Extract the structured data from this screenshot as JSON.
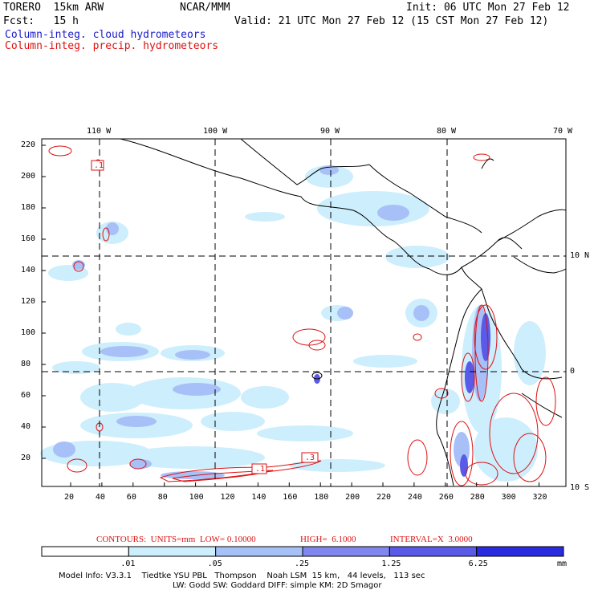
{
  "header": {
    "model": "TORERO  15km ARW",
    "org": "NCAR/MMM",
    "init": "Init: 06 UTC Mon 27 Feb 12",
    "fcst": "Fcst:   15 h",
    "valid": "Valid: 21 UTC Mon 27 Feb 12 (15 CST Mon 27 Feb 12)",
    "field1": "Column-integ. cloud hydrometeors",
    "field2": "Column-integ. precip. hydrometeors"
  },
  "colors": {
    "field1": "#1a1acc",
    "field2": "#dd1111",
    "shade_levels": [
      "#ffffff",
      "#cdeefc",
      "#a8c0f8",
      "#8088f0",
      "#5a5ae8",
      "#2a2ae0"
    ],
    "precip_contour": "#dd1111",
    "coast": "#000000"
  },
  "map": {
    "top_lon_labels": [
      "110 W",
      "100 W",
      "90 W",
      "80 W",
      "70 W"
    ],
    "right_lat_labels": [
      "10 N",
      "0",
      "10 S"
    ],
    "y_ticks": [
      "220",
      "200",
      "180",
      "160",
      "140",
      "120",
      "100",
      "80",
      "60",
      "40",
      "20"
    ],
    "x_ticks": [
      "20",
      "40",
      "60",
      "80",
      "100",
      "120",
      "140",
      "160",
      "180",
      "200",
      "220",
      "240",
      "260",
      "280",
      "300",
      "320"
    ],
    "contour_labels": [
      ".1",
      ".1",
      ".3"
    ]
  },
  "contours_line": {
    "prefix": "CONTOURS:  UNITS=mm  LOW= 0.10000",
    "high": "HIGH=  6.1000",
    "interval": "INTERVAL=X  3.0000"
  },
  "colorbar": {
    "labels": [
      ".01",
      ".05",
      ".25",
      "1.25",
      "6.25"
    ],
    "unit": "mm"
  },
  "footer": {
    "line1": "Model Info: V3.3.1    Tiedtke YSU PBL   Thompson    Noah LSM  15 km,   44 levels,   113 sec",
    "line2": "LW: Godd SW: Goddard DIFF: simple KM: 2D Smagor"
  }
}
